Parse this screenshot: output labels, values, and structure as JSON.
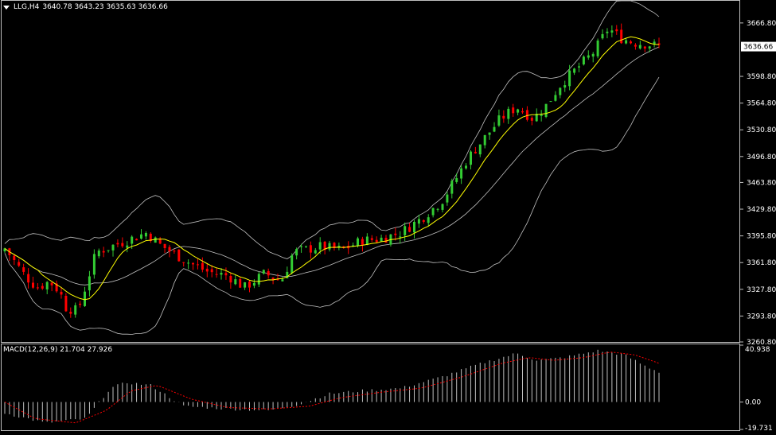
{
  "header": {
    "symbol": "LLG,H4",
    "ohlc": "3640.78 3643.23 3635.63 3636.66"
  },
  "macd_header": {
    "label": "MACD(12,26,9)",
    "values": "21.704 27.926"
  },
  "colors": {
    "background": "#000000",
    "bull": "#33cc33",
    "bear": "#ff0000",
    "bands": "#c0c0c0",
    "ma": "#ffff00",
    "macd_hist": "#c0c0c0",
    "signal": "#ff0000",
    "price_tag_bg": "#ffffff"
  },
  "chart_data": [
    {
      "type": "candlestick",
      "title": "LLG,H4",
      "ylim": [
        3260.8,
        3696
      ],
      "y_ticks": [
        "3666.80",
        "3598.80",
        "3564.80",
        "3530.80",
        "3496.80",
        "3463.80",
        "3429.80",
        "3395.80",
        "3361.80",
        "3327.80",
        "3293.80",
        "3260.80"
      ],
      "last_price": "3636.66",
      "bars": 140,
      "indicators": [
        "Bollinger Bands",
        "Moving Average"
      ],
      "close_path": [
        [
          0,
          3380
        ],
        [
          10,
          3345
        ],
        [
          16,
          3330
        ],
        [
          22,
          3338
        ],
        [
          27,
          3325
        ],
        [
          30,
          3305
        ],
        [
          36,
          3300
        ],
        [
          45,
          3375
        ],
        [
          55,
          3385
        ],
        [
          62,
          3392
        ],
        [
          70,
          3400
        ],
        [
          76,
          3385
        ],
        [
          84,
          3372
        ],
        [
          92,
          3360
        ],
        [
          100,
          3350
        ],
        [
          110,
          3345
        ],
        [
          118,
          3330
        ],
        [
          128,
          3348
        ],
        [
          134,
          3340
        ],
        [
          137,
          3342
        ],
        [
          142,
          3375
        ],
        [
          155,
          3382
        ],
        [
          166,
          3378
        ],
        [
          176,
          3390
        ],
        [
          185,
          3392
        ],
        [
          195,
          3400
        ],
        [
          205,
          3418
        ],
        [
          215,
          3440
        ],
        [
          222,
          3468
        ],
        [
          228,
          3495
        ],
        [
          236,
          3520
        ],
        [
          244,
          3545
        ],
        [
          252,
          3560
        ],
        [
          260,
          3545
        ],
        [
          266,
          3560
        ],
        [
          274,
          3590
        ],
        [
          282,
          3610
        ],
        [
          290,
          3630
        ],
        [
          297,
          3660
        ],
        [
          303,
          3648
        ],
        [
          309,
          3642
        ],
        [
          316,
          3640
        ],
        [
          322,
          3637
        ]
      ]
    },
    {
      "type": "bar",
      "title": "MACD(12,26,9)",
      "series_labels": "21.704 27.926",
      "ylim": [
        -19.731,
        40.938
      ],
      "y_ticks": [
        "40.938",
        "0.00",
        "-19.731"
      ],
      "histogram": [
        [
          0,
          -8
        ],
        [
          20,
          -15
        ],
        [
          40,
          -12
        ],
        [
          52,
          10
        ],
        [
          60,
          14
        ],
        [
          72,
          12
        ],
        [
          88,
          -3
        ],
        [
          110,
          -5
        ],
        [
          130,
          -6
        ],
        [
          144,
          -2
        ],
        [
          160,
          6
        ],
        [
          175,
          8
        ],
        [
          195,
          10
        ],
        [
          215,
          18
        ],
        [
          235,
          28
        ],
        [
          252,
          35
        ],
        [
          262,
          30
        ],
        [
          275,
          32
        ],
        [
          292,
          37
        ],
        [
          305,
          34
        ],
        [
          315,
          26
        ],
        [
          322,
          21.7
        ]
      ],
      "signal": [
        [
          0,
          0
        ],
        [
          15,
          -12
        ],
        [
          35,
          -15
        ],
        [
          50,
          -6
        ],
        [
          62,
          8
        ],
        [
          75,
          12
        ],
        [
          92,
          2
        ],
        [
          110,
          -4
        ],
        [
          130,
          -5
        ],
        [
          150,
          -3
        ],
        [
          165,
          3
        ],
        [
          185,
          7
        ],
        [
          205,
          10
        ],
        [
          225,
          18
        ],
        [
          245,
          28
        ],
        [
          258,
          32
        ],
        [
          270,
          30
        ],
        [
          285,
          32
        ],
        [
          298,
          36
        ],
        [
          310,
          34
        ],
        [
          322,
          27.9
        ]
      ]
    }
  ]
}
